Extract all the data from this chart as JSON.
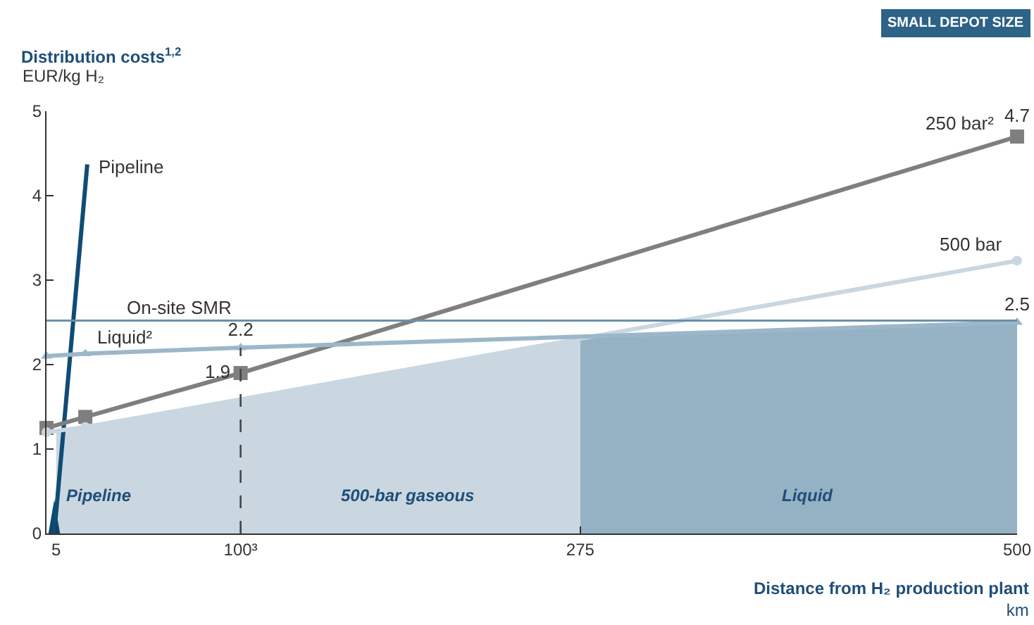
{
  "chart_data": {
    "type": "line",
    "title": "Distribution costs$^{1,2}$",
    "ylabel": "EUR/kg H₂",
    "xlabel": "Distance from H₂ production plant\nkm",
    "xlim": [
      0,
      500
    ],
    "xticks": [
      5,
      {
        "value": 100,
        "label": "100³"
      },
      275,
      500
    ],
    "ylim": [
      0,
      5
    ],
    "yticks": [
      0,
      1,
      2,
      3,
      4,
      5
    ],
    "grid": false,
    "series": [
      {
        "type": "area",
        "name": "500-bar gaseous",
        "color": "#cad7e1",
        "x": [
          5,
          100,
          275
        ],
        "values": [
          1.22,
          1.59,
          2.31
        ]
      },
      {
        "type": "area",
        "name": "Liquid",
        "color": "#95b2c4",
        "x": [
          275,
          500
        ],
        "values": [
          2.33,
          2.5
        ]
      },
      {
        "type": "area",
        "name": "Pipeline",
        "color": "#0d4a70",
        "x": [
          1,
          4,
          7
        ],
        "values": [
          0,
          0.4,
          0
        ]
      },
      {
        "name": "Pipeline",
        "color": "#0f4c75",
        "marker": "none",
        "x": [
          4,
          21
        ],
        "values": [
          0,
          4.37
        ]
      },
      {
        "name": "250 bar²",
        "color": "#7f7f7f",
        "marker": "square",
        "x": [
          0,
          20,
          100,
          500
        ],
        "values": [
          1.25,
          1.38,
          1.9,
          4.7
        ],
        "value_labels": [
          null,
          null,
          "1.9",
          "4.7"
        ]
      },
      {
        "name": "500 bar",
        "color": "#c9d7e1",
        "marker": "circle",
        "x": [
          0,
          20,
          500
        ],
        "values": [
          1.2,
          1.26,
          3.23
        ]
      },
      {
        "name": "Liquid²",
        "color": "#9cb7c9",
        "marker": "triangle",
        "x": [
          0,
          20,
          100,
          500
        ],
        "values": [
          2.1,
          2.13,
          2.2,
          2.5
        ],
        "value_labels": [
          null,
          null,
          "2.2",
          "2.5"
        ]
      }
    ],
    "ref_lines": [
      {
        "axis": "y",
        "value": 2.52,
        "label": "On-site SMR",
        "color": "#6a90ab",
        "line_style": "solid"
      },
      {
        "axis": "x",
        "value": 100,
        "label": null,
        "color": "#444444",
        "line_style": "dashed"
      }
    ],
    "annotations": [
      "SMALL DEPOT SIZE"
    ]
  }
}
